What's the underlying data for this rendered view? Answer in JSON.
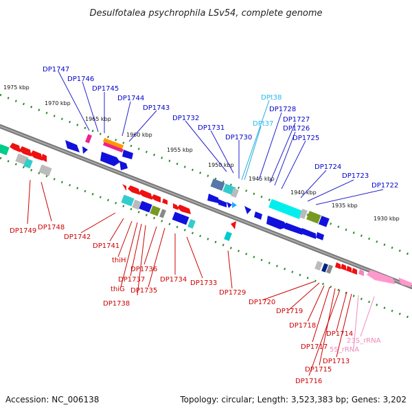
{
  "title": "Desulfotalea psychrophila LSv54, complete genome",
  "ticks": [
    "1975 kbp",
    "1970 kbp",
    "1965 kbp",
    "1960 kbp",
    "1955 kbp",
    "1950 kbp",
    "1945 kbp",
    "1940 kbp",
    "1935 kbp",
    "1930 kbp"
  ],
  "labels_upper": [
    "DP1747",
    "DP1746",
    "DP1745",
    "DP1744",
    "DP1743",
    "DP1732",
    "DP1731",
    "DP1730",
    "DP1728",
    "DP1727",
    "DP1726",
    "DP1725",
    "DP1724",
    "DP1723",
    "DP1722"
  ],
  "labels_trna": [
    "DPt38",
    "DPt37"
  ],
  "labels_lower": [
    "DP1749",
    "DP1748",
    "DP1742",
    "DP1741",
    "thiH",
    "DP1736",
    "DP1737",
    "thiG",
    "DP1735",
    "DP1738",
    "DP1734",
    "DP1733",
    "DP1729",
    "DP1720",
    "DP1719",
    "DP1718",
    "DP1714",
    "DP1717",
    "DP1713",
    "DP1715",
    "DP1716"
  ],
  "labels_rrna": [
    "23S_rRNA",
    "5S_rRNA"
  ],
  "footer": {
    "accession": "Accession: NC_006138",
    "summary": "Topology: circular; Length: 3,523,383 bp; Genes: 3,202"
  },
  "colors": {
    "forward_gene": "#1111dd",
    "reverse_gene": "#ee1111",
    "trna": "#22bbee",
    "rrna": "#ff99cc",
    "scale_track": "#2a8a2a"
  }
}
